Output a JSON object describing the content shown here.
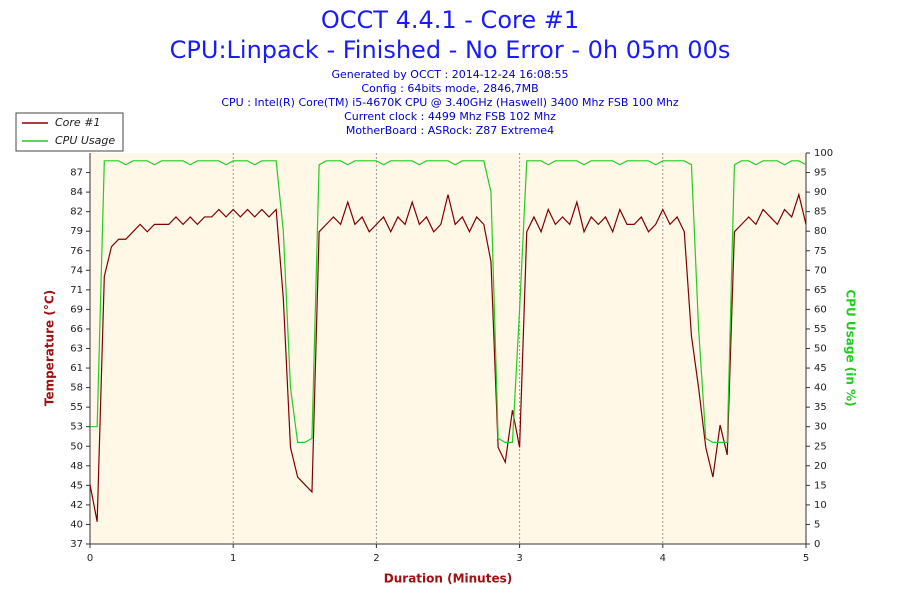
{
  "chart_data": {
    "type": "line",
    "title": "OCCT 4.4.1 - Core #1",
    "subtitle": "CPU:Linpack - Finished - No Error - 0h 05m 00s",
    "info": [
      "Generated by OCCT : 2014-12-24 16:08:55",
      "Config : 64bits mode, 2846,7MB",
      "CPU : Intel(R) Core(TM) i5-4670K CPU @ 3.40GHz (Haswell) 3400 Mhz FSB 100 Mhz",
      "Current clock : 4499 Mhz FSB 102 Mhz",
      "MotherBoard : ASRock: Z87 Extreme4"
    ],
    "xlabel": "Duration (Minutes)",
    "ylabel": "Temperature (°C)",
    "y2label": "CPU Usage (in %)",
    "xlim": [
      0,
      5
    ],
    "xticks": [
      0,
      1,
      2,
      3,
      4,
      5
    ],
    "ylim": [
      37,
      89.6
    ],
    "yticks": [
      37,
      {
        "value": 39.63,
        "label": "40"
      },
      {
        "value": 42.26,
        "label": "42"
      },
      {
        "value": 44.89,
        "label": "45"
      },
      {
        "value": 47.52,
        "label": "48"
      },
      {
        "value": 50.15,
        "label": "50"
      },
      {
        "value": 52.78,
        "label": "53"
      },
      {
        "value": 55.41,
        "label": "55"
      },
      {
        "value": 58.04,
        "label": "58"
      },
      {
        "value": 60.67,
        "label": "61"
      },
      {
        "value": 63.3,
        "label": "63"
      },
      {
        "value": 65.93,
        "label": "66"
      },
      {
        "value": 68.56,
        "label": "69"
      },
      {
        "value": 71.19,
        "label": "71"
      },
      {
        "value": 73.82,
        "label": "74"
      },
      {
        "value": 76.45,
        "label": "76"
      },
      {
        "value": 79.08,
        "label": "79"
      },
      {
        "value": 81.71,
        "label": "82"
      },
      {
        "value": 84.34,
        "label": "84"
      },
      {
        "value": 86.97,
        "label": "87"
      }
    ],
    "y2lim": [
      0,
      100
    ],
    "y2ticks": [
      0,
      5,
      10,
      15,
      20,
      25,
      30,
      35,
      40,
      45,
      50,
      55,
      60,
      65,
      70,
      75,
      80,
      85,
      90,
      95,
      100
    ],
    "grid": "x",
    "legend": "top-left",
    "x": [
      0,
      0.05,
      0.1,
      0.15,
      0.2,
      0.25,
      0.3,
      0.35,
      0.4,
      0.45,
      0.5,
      0.55,
      0.6,
      0.65,
      0.7,
      0.75,
      0.8,
      0.85,
      0.9,
      0.95,
      1,
      1.05,
      1.1,
      1.15,
      1.2,
      1.25,
      1.3,
      1.35,
      1.4,
      1.45,
      1.5,
      1.55,
      1.6,
      1.65,
      1.7,
      1.75,
      1.8,
      1.85,
      1.9,
      1.95,
      2,
      2.05,
      2.1,
      2.15,
      2.2,
      2.25,
      2.3,
      2.35,
      2.4,
      2.45,
      2.5,
      2.55,
      2.6,
      2.65,
      2.7,
      2.75,
      2.8,
      2.85,
      2.9,
      2.95,
      3,
      3.05,
      3.1,
      3.15,
      3.2,
      3.25,
      3.3,
      3.35,
      3.4,
      3.45,
      3.5,
      3.55,
      3.6,
      3.65,
      3.7,
      3.75,
      3.8,
      3.85,
      3.9,
      3.95,
      4,
      4.05,
      4.1,
      4.15,
      4.2,
      4.25,
      4.3,
      4.35,
      4.4,
      4.45,
      4.5,
      4.55,
      4.6,
      4.65,
      4.7,
      4.75,
      4.8,
      4.85,
      4.9,
      4.95,
      5
    ],
    "series": [
      {
        "name": "Core #1",
        "color": "#800000",
        "values": [
          45,
          40,
          73,
          77,
          78,
          78,
          79,
          80,
          79,
          80,
          80,
          80,
          81,
          80,
          81,
          80,
          81,
          81,
          82,
          81,
          82,
          81,
          82,
          81,
          82,
          81,
          82,
          70,
          50,
          46,
          45,
          44,
          79,
          80,
          81,
          80,
          83,
          80,
          81,
          79,
          80,
          81,
          79,
          81,
          80,
          83,
          80,
          81,
          79,
          80,
          84,
          80,
          81,
          79,
          81,
          80,
          75,
          50,
          48,
          55,
          50,
          79,
          81,
          79,
          82,
          80,
          81,
          80,
          83,
          79,
          81,
          80,
          81,
          79,
          82,
          80,
          80,
          81,
          79,
          80,
          82,
          80,
          81,
          79,
          65,
          58,
          50,
          46,
          53,
          49,
          79,
          80,
          81,
          80,
          82,
          81,
          80,
          82,
          81,
          84,
          80
        ]
      },
      {
        "name": "CPU Usage",
        "color": "#22cc22",
        "axis": "y2",
        "values": [
          30,
          30,
          98,
          98,
          98,
          97,
          98,
          98,
          98,
          97,
          98,
          98,
          98,
          98,
          97,
          98,
          98,
          98,
          98,
          97,
          98,
          98,
          98,
          97,
          98,
          98,
          98,
          80,
          40,
          26,
          26,
          27,
          97,
          98,
          98,
          98,
          97,
          98,
          98,
          98,
          98,
          97,
          98,
          98,
          98,
          98,
          97,
          98,
          98,
          98,
          98,
          97,
          98,
          98,
          98,
          98,
          90,
          27,
          26,
          26,
          60,
          98,
          98,
          98,
          97,
          98,
          98,
          98,
          98,
          97,
          98,
          98,
          98,
          98,
          97,
          98,
          98,
          98,
          98,
          97,
          98,
          98,
          98,
          98,
          97,
          55,
          27,
          26,
          26,
          26,
          97,
          98,
          98,
          97,
          98,
          98,
          98,
          97,
          98,
          98,
          97
        ]
      }
    ]
  }
}
